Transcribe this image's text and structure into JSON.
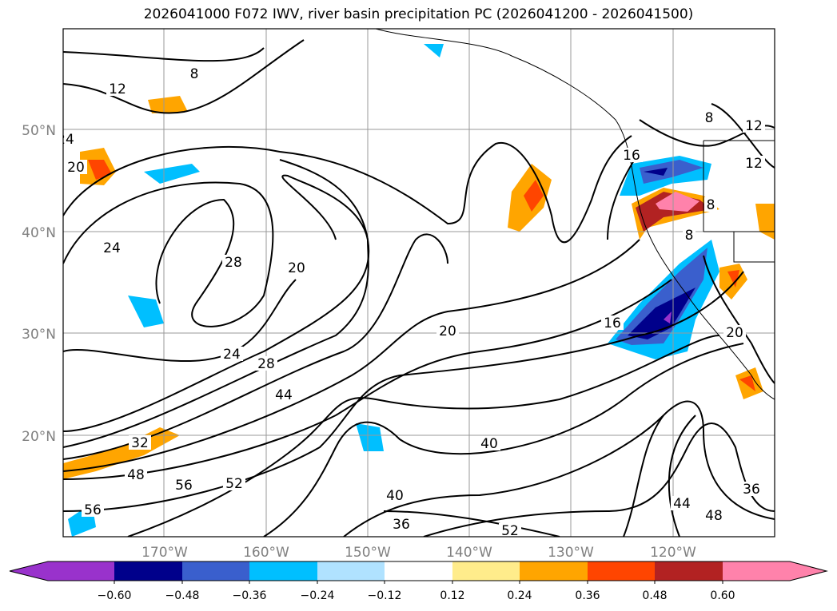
{
  "title": "2026041000 F072 IWV, river basin precipitation PC (2026041200 - 2026041500)",
  "lat_labels": [
    "50°N",
    "40°N",
    "30°N",
    "20°N"
  ],
  "lon_labels": [
    "170°W",
    "160°W",
    "150°W",
    "140°W",
    "130°W",
    "120°W"
  ],
  "colorbar": {
    "ticks": [
      "−0.60",
      "−0.48",
      "−0.36",
      "−0.24",
      "−0.12",
      "0.12",
      "0.24",
      "0.36",
      "0.48",
      "0.60"
    ],
    "colors": [
      "#9932CC",
      "#00008B",
      "#3A5FCD",
      "#00BFFF",
      "#B0E2FF",
      "#FFFFFF",
      "#FFEC8B",
      "#FFA500",
      "#FF4500",
      "#B22222",
      "#FF82AB"
    ]
  },
  "contour_labels": [
    "8",
    "12",
    "24",
    "20",
    "24",
    "28",
    "20",
    "24",
    "28",
    "44",
    "32",
    "48",
    "56",
    "56",
    "52",
    "40",
    "40",
    "36",
    "52",
    "16",
    "20",
    "12",
    "12",
    "8",
    "16",
    "8",
    "8",
    "44",
    "48",
    "36",
    "20"
  ]
}
